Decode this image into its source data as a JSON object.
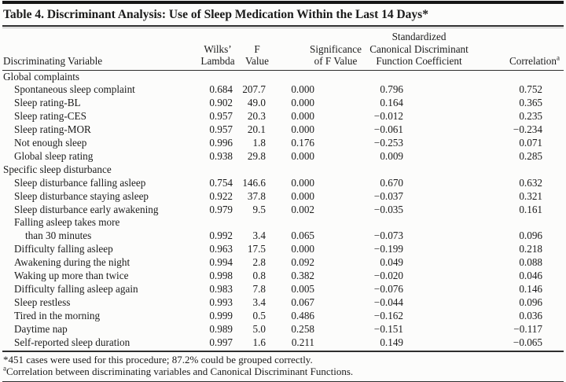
{
  "page": {
    "background": "#fcfcfb",
    "text_color": "#1b1b1b",
    "rule_color": "#2e2e2e"
  },
  "table": {
    "title": "Table 4. Discriminant Analysis: Use of Sleep Medication Within the Last 14 Days*",
    "headers": {
      "variable": "Discriminating Variable",
      "wilks": [
        "Wilks’",
        "Lambda"
      ],
      "f": [
        "F",
        "Value"
      ],
      "sig": [
        "Significance",
        "of F Value"
      ],
      "coef": [
        "Standardized",
        "Canonical Discriminant",
        "Function Coefficient"
      ],
      "corr": "Correlation",
      "corr_marker": "a"
    },
    "sections": [
      {
        "label": "Global complaints",
        "rows": [
          {
            "variable": "Spontaneous sleep complaint",
            "wilks": "0.684",
            "f": "207.7",
            "sig": "0.000",
            "coef": "0.796",
            "corr": "0.752"
          },
          {
            "variable": "Sleep rating-BL",
            "wilks": "0.902",
            "f": "49.0",
            "sig": "0.000",
            "coef": "0.164",
            "corr": "0.365"
          },
          {
            "variable": "Sleep rating-CES",
            "wilks": "0.957",
            "f": "20.3",
            "sig": "0.000",
            "coef": "−0.012",
            "corr": "0.235"
          },
          {
            "variable": "Sleep rating-MOR",
            "wilks": "0.957",
            "f": "20.1",
            "sig": "0.000",
            "coef": "−0.061",
            "corr": "−0.234"
          },
          {
            "variable": "Not enough sleep",
            "wilks": "0.996",
            "f": "1.8",
            "sig": "0.176",
            "coef": "−0.253",
            "corr": "0.071"
          },
          {
            "variable": "Global sleep rating",
            "wilks": "0.938",
            "f": "29.8",
            "sig": "0.000",
            "coef": "0.009",
            "corr": "0.285"
          }
        ]
      },
      {
        "label": "Specific sleep disturbance",
        "rows": [
          {
            "variable": "Sleep disturbance falling asleep",
            "wilks": "0.754",
            "f": "146.6",
            "sig": "0.000",
            "coef": "0.670",
            "corr": "0.632"
          },
          {
            "variable": "Sleep disturbance staying asleep",
            "wilks": "0.922",
            "f": "37.8",
            "sig": "0.000",
            "coef": "−0.037",
            "corr": "0.321"
          },
          {
            "variable": "Sleep disturbance early awakening",
            "wilks": "0.979",
            "f": "9.5",
            "sig": "0.002",
            "coef": "−0.035",
            "corr": "0.161"
          },
          {
            "variable": "Falling asleep takes more",
            "variable2": "than 30 minutes",
            "wilks": "0.992",
            "f": "3.4",
            "sig": "0.065",
            "coef": "−0.073",
            "corr": "0.096"
          },
          {
            "variable": "Difficulty falling asleep",
            "wilks": "0.963",
            "f": "17.5",
            "sig": "0.000",
            "coef": "−0.199",
            "corr": "0.218"
          },
          {
            "variable": "Awakening during the night",
            "wilks": "0.994",
            "f": "2.8",
            "sig": "0.092",
            "coef": "0.049",
            "corr": "0.088"
          },
          {
            "variable": "Waking up more than twice",
            "wilks": "0.998",
            "f": "0.8",
            "sig": "0.382",
            "coef": "−0.020",
            "corr": "0.046"
          },
          {
            "variable": "Difficulty falling asleep again",
            "wilks": "0.983",
            "f": "7.8",
            "sig": "0.005",
            "coef": "−0.076",
            "corr": "0.146"
          },
          {
            "variable": "Sleep restless",
            "wilks": "0.993",
            "f": "3.4",
            "sig": "0.067",
            "coef": "−0.044",
            "corr": "0.096"
          },
          {
            "variable": "Tired in the morning",
            "wilks": "0.999",
            "f": "0.5",
            "sig": "0.486",
            "coef": "−0.162",
            "corr": "0.036"
          },
          {
            "variable": "Daytime nap",
            "wilks": "0.989",
            "f": "5.0",
            "sig": "0.258",
            "coef": "−0.151",
            "corr": "−0.117"
          },
          {
            "variable": "Self-reported sleep duration",
            "wilks": "0.997",
            "f": "1.6",
            "sig": "0.211",
            "coef": "0.149",
            "corr": "−0.065"
          }
        ]
      }
    ],
    "footnotes": [
      {
        "marker": "*",
        "text": "451 cases were used for this procedure; 87.2% could be grouped correctly."
      },
      {
        "marker": "a",
        "text": "Correlation between discriminating variables and Canonical Discriminant Functions."
      }
    ]
  }
}
